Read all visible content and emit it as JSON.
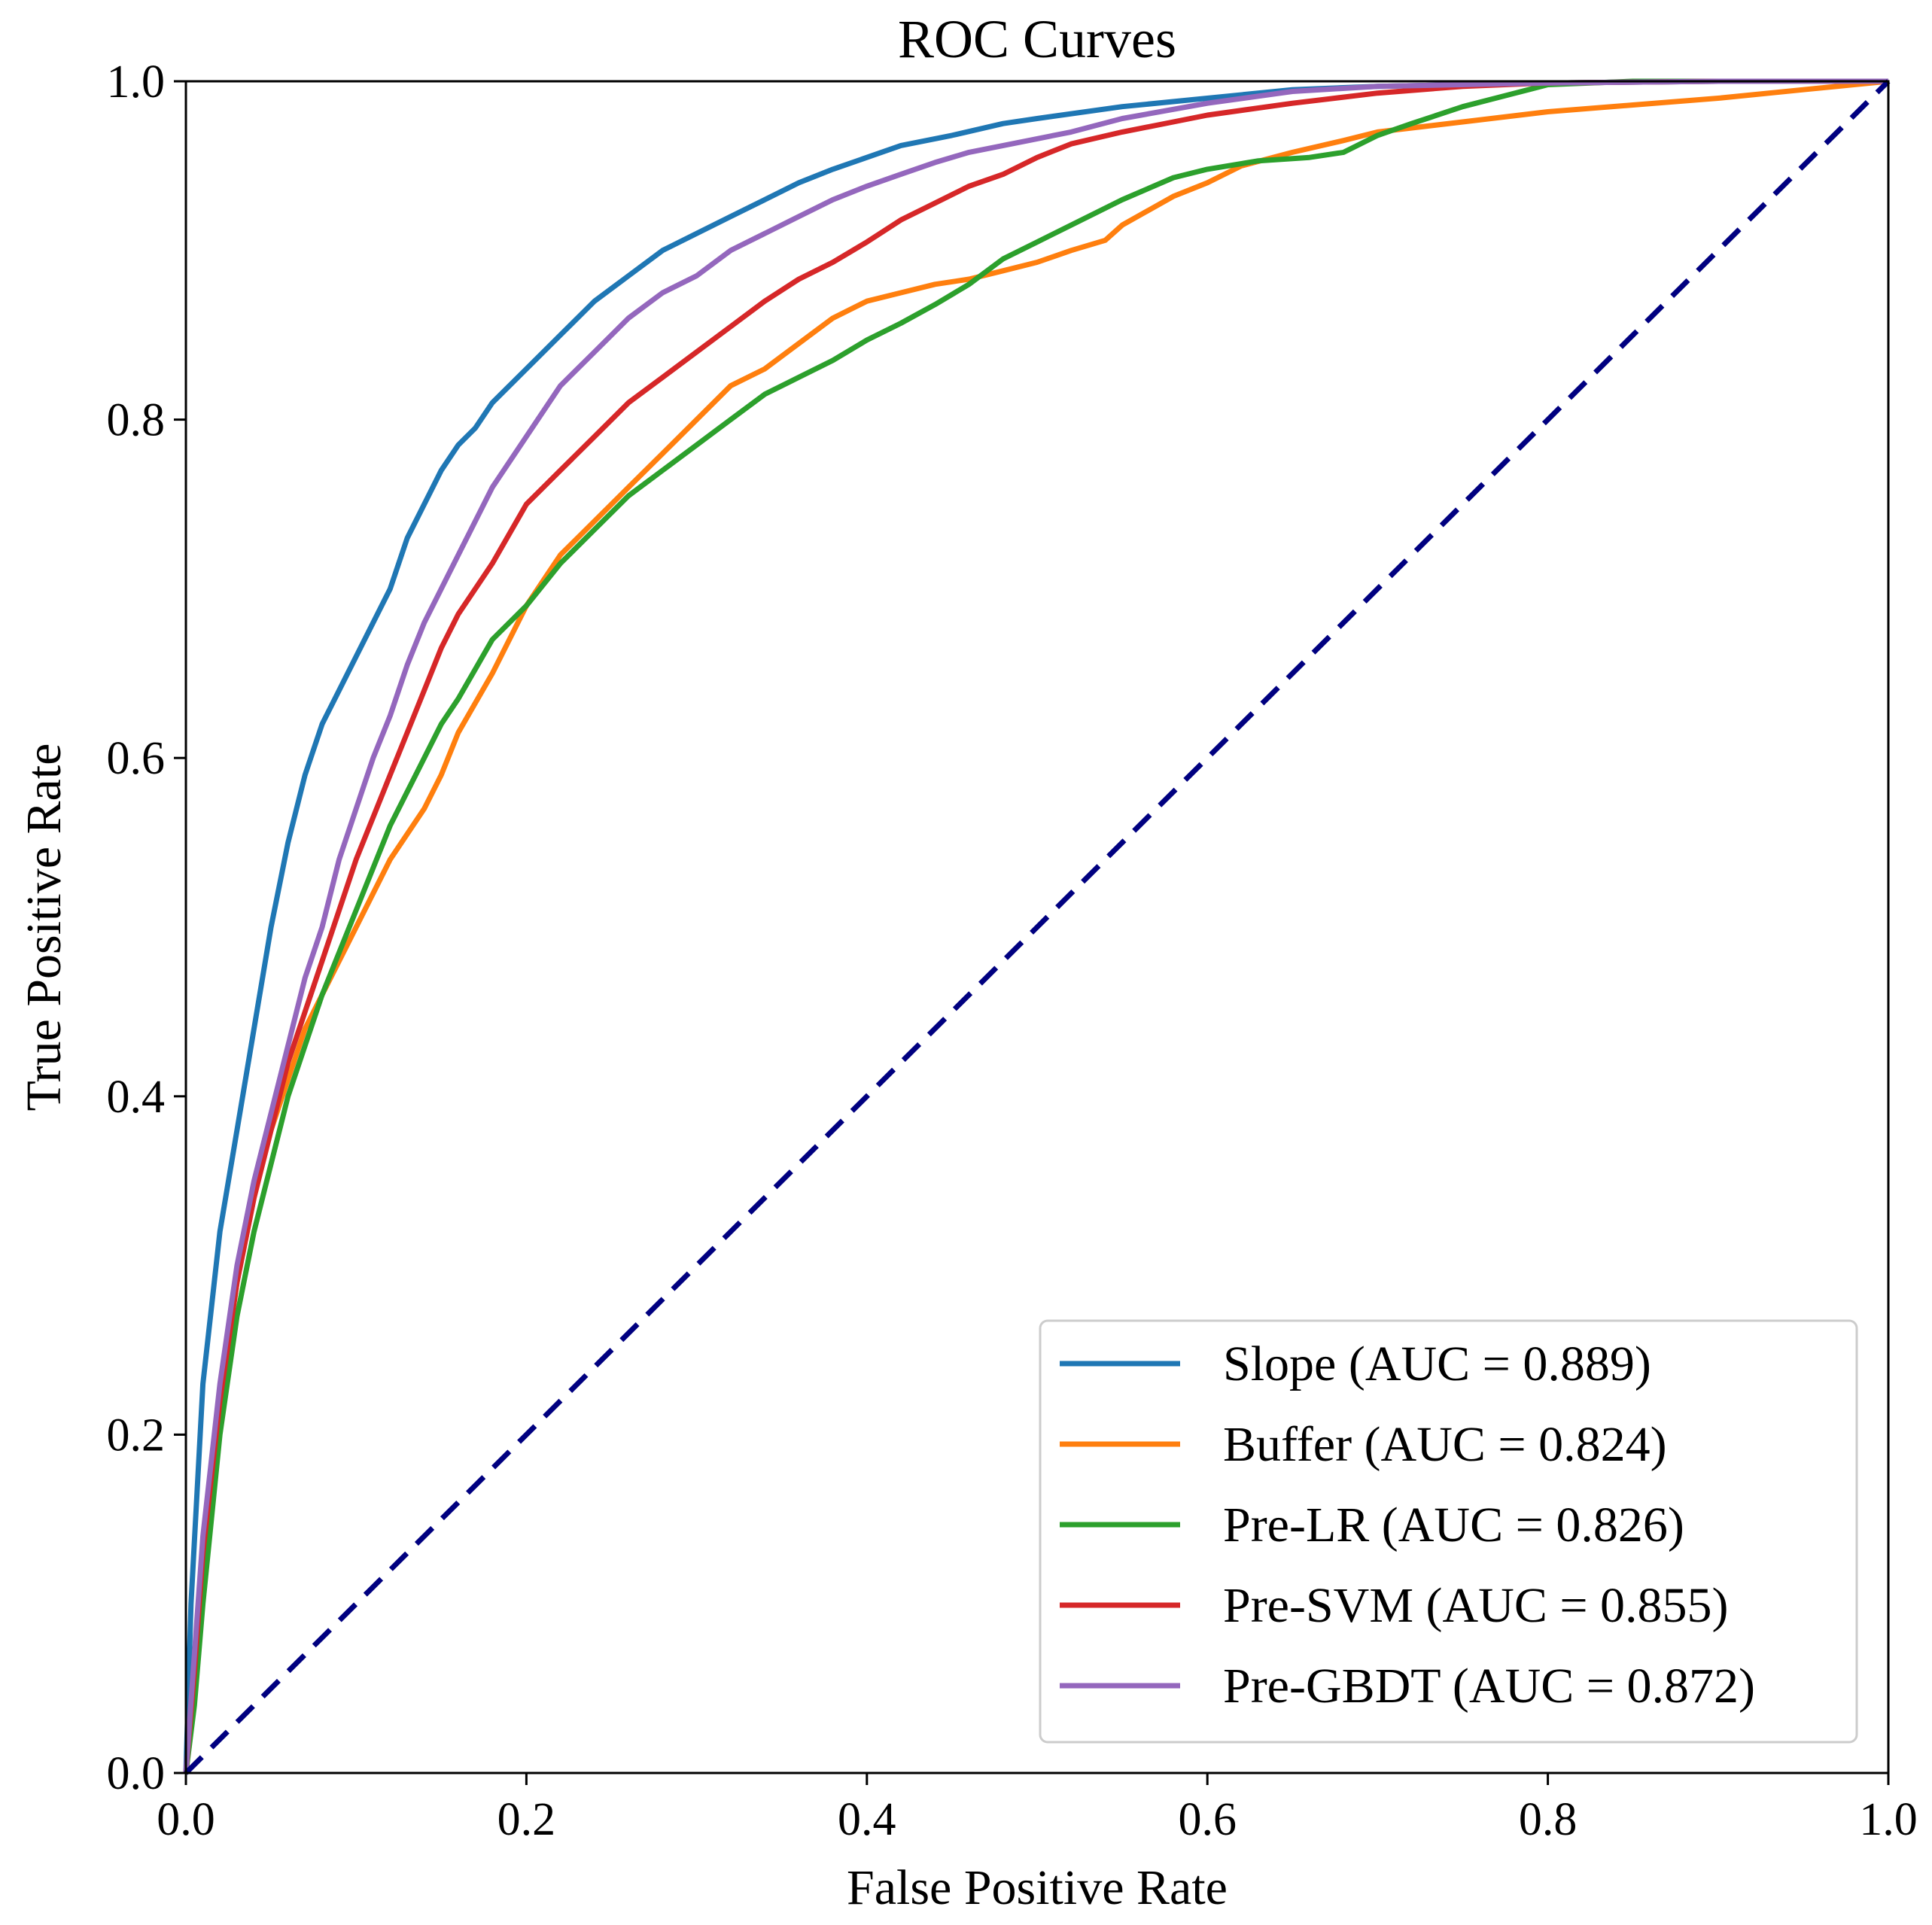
{
  "chart_data": {
    "type": "line",
    "title": "ROC Curves",
    "xlabel": "False Positive Rate",
    "ylabel": "True Positive Rate",
    "xlim": [
      0.0,
      1.0
    ],
    "ylim": [
      0.0,
      1.0
    ],
    "xticks": [
      "0.0",
      "0.2",
      "0.4",
      "0.6",
      "0.8",
      "1.0"
    ],
    "yticks": [
      "0.0",
      "0.2",
      "0.4",
      "0.6",
      "0.8",
      "1.0"
    ],
    "grid": false,
    "legend_position": "lower-right",
    "series": [
      {
        "name": "Slope (AUC = 0.889)",
        "color": "#1f77b4",
        "x": [
          0.0,
          0.003,
          0.01,
          0.02,
          0.03,
          0.04,
          0.05,
          0.06,
          0.07,
          0.08,
          0.09,
          0.1,
          0.12,
          0.13,
          0.14,
          0.15,
          0.16,
          0.17,
          0.18,
          0.2,
          0.22,
          0.24,
          0.26,
          0.28,
          0.3,
          0.32,
          0.34,
          0.36,
          0.38,
          0.4,
          0.42,
          0.45,
          0.48,
          0.5,
          0.55,
          0.6,
          0.65,
          0.7,
          0.8,
          0.9,
          1.0
        ],
        "y": [
          0.0,
          0.1,
          0.23,
          0.32,
          0.38,
          0.44,
          0.5,
          0.55,
          0.59,
          0.62,
          0.64,
          0.66,
          0.7,
          0.73,
          0.75,
          0.77,
          0.785,
          0.795,
          0.81,
          0.83,
          0.85,
          0.87,
          0.885,
          0.9,
          0.91,
          0.92,
          0.93,
          0.94,
          0.948,
          0.955,
          0.962,
          0.968,
          0.975,
          0.978,
          0.985,
          0.99,
          0.995,
          0.997,
          0.999,
          1.0,
          1.0
        ]
      },
      {
        "name": "Buffer (AUC = 0.824)",
        "color": "#ff7f0e",
        "x": [
          0.0,
          0.005,
          0.01,
          0.02,
          0.03,
          0.04,
          0.05,
          0.06,
          0.07,
          0.08,
          0.1,
          0.12,
          0.14,
          0.15,
          0.16,
          0.18,
          0.2,
          0.22,
          0.24,
          0.26,
          0.28,
          0.3,
          0.32,
          0.34,
          0.36,
          0.38,
          0.4,
          0.42,
          0.44,
          0.46,
          0.48,
          0.5,
          0.52,
          0.54,
          0.55,
          0.58,
          0.6,
          0.62,
          0.65,
          0.68,
          0.7,
          0.75,
          0.8,
          0.85,
          0.9,
          0.95,
          1.0
        ],
        "y": [
          0.0,
          0.05,
          0.12,
          0.22,
          0.29,
          0.34,
          0.38,
          0.41,
          0.44,
          0.46,
          0.5,
          0.54,
          0.57,
          0.59,
          0.615,
          0.65,
          0.69,
          0.72,
          0.74,
          0.76,
          0.78,
          0.8,
          0.82,
          0.83,
          0.845,
          0.86,
          0.87,
          0.875,
          0.88,
          0.883,
          0.888,
          0.893,
          0.9,
          0.906,
          0.915,
          0.932,
          0.94,
          0.95,
          0.958,
          0.965,
          0.97,
          0.976,
          0.982,
          0.986,
          0.99,
          0.995,
          1.0
        ]
      },
      {
        "name": "Pre-LR (AUC = 0.826)",
        "color": "#2ca02c",
        "x": [
          0.0,
          0.005,
          0.01,
          0.02,
          0.03,
          0.04,
          0.05,
          0.06,
          0.07,
          0.08,
          0.1,
          0.12,
          0.14,
          0.15,
          0.16,
          0.18,
          0.2,
          0.22,
          0.24,
          0.26,
          0.28,
          0.3,
          0.32,
          0.34,
          0.36,
          0.38,
          0.4,
          0.42,
          0.44,
          0.46,
          0.48,
          0.5,
          0.52,
          0.55,
          0.58,
          0.6,
          0.63,
          0.66,
          0.68,
          0.7,
          0.72,
          0.75,
          0.8,
          0.85,
          0.9,
          1.0
        ],
        "y": [
          0.0,
          0.04,
          0.1,
          0.2,
          0.27,
          0.32,
          0.36,
          0.4,
          0.43,
          0.46,
          0.51,
          0.56,
          0.6,
          0.62,
          0.635,
          0.67,
          0.69,
          0.715,
          0.735,
          0.755,
          0.77,
          0.785,
          0.8,
          0.815,
          0.825,
          0.835,
          0.847,
          0.857,
          0.868,
          0.88,
          0.895,
          0.905,
          0.915,
          0.93,
          0.943,
          0.948,
          0.953,
          0.955,
          0.958,
          0.968,
          0.975,
          0.985,
          0.998,
          1.0,
          1.0,
          1.0
        ]
      },
      {
        "name": "Pre-SVM (AUC = 0.855)",
        "color": "#d62728",
        "x": [
          0.0,
          0.005,
          0.01,
          0.02,
          0.03,
          0.04,
          0.05,
          0.06,
          0.07,
          0.08,
          0.09,
          0.1,
          0.11,
          0.12,
          0.13,
          0.14,
          0.15,
          0.16,
          0.18,
          0.2,
          0.22,
          0.24,
          0.26,
          0.28,
          0.3,
          0.32,
          0.34,
          0.36,
          0.38,
          0.4,
          0.42,
          0.44,
          0.46,
          0.48,
          0.5,
          0.52,
          0.55,
          0.58,
          0.6,
          0.65,
          0.7,
          0.75,
          0.8,
          0.9,
          1.0
        ],
        "y": [
          0.0,
          0.06,
          0.13,
          0.22,
          0.29,
          0.34,
          0.38,
          0.42,
          0.45,
          0.48,
          0.51,
          0.54,
          0.565,
          0.59,
          0.615,
          0.64,
          0.665,
          0.685,
          0.715,
          0.75,
          0.77,
          0.79,
          0.81,
          0.825,
          0.84,
          0.855,
          0.87,
          0.883,
          0.893,
          0.905,
          0.918,
          0.928,
          0.938,
          0.945,
          0.955,
          0.963,
          0.97,
          0.976,
          0.98,
          0.987,
          0.993,
          0.997,
          0.999,
          1.0,
          1.0
        ]
      },
      {
        "name": "Pre-GBDT (AUC = 0.872)",
        "color": "#9467bd",
        "x": [
          0.0,
          0.005,
          0.01,
          0.02,
          0.03,
          0.04,
          0.05,
          0.06,
          0.07,
          0.08,
          0.09,
          0.1,
          0.11,
          0.12,
          0.13,
          0.14,
          0.15,
          0.16,
          0.18,
          0.2,
          0.22,
          0.24,
          0.26,
          0.28,
          0.3,
          0.32,
          0.34,
          0.36,
          0.38,
          0.4,
          0.42,
          0.44,
          0.46,
          0.48,
          0.5,
          0.52,
          0.55,
          0.6,
          0.65,
          0.7,
          0.8,
          0.9,
          1.0
        ],
        "y": [
          0.0,
          0.07,
          0.14,
          0.23,
          0.3,
          0.35,
          0.39,
          0.43,
          0.47,
          0.5,
          0.54,
          0.57,
          0.6,
          0.625,
          0.655,
          0.68,
          0.7,
          0.72,
          0.76,
          0.79,
          0.82,
          0.84,
          0.86,
          0.875,
          0.885,
          0.9,
          0.91,
          0.92,
          0.93,
          0.938,
          0.945,
          0.952,
          0.958,
          0.962,
          0.966,
          0.97,
          0.978,
          0.987,
          0.994,
          0.997,
          0.999,
          1.0,
          1.0
        ]
      },
      {
        "name": "",
        "color": "#000080",
        "linestyle": "dashed",
        "x": [
          0.0,
          1.0
        ],
        "y": [
          0.0,
          1.0
        ]
      }
    ]
  }
}
